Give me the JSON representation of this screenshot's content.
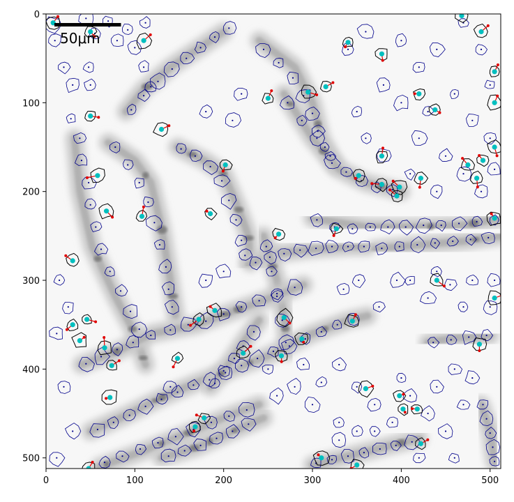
{
  "chart_data": {
    "type": "image",
    "x_ticks": [
      0,
      100,
      200,
      300,
      400,
      500
    ],
    "y_ticks": [
      0,
      100,
      200,
      300,
      400,
      500
    ],
    "xlim": [
      0,
      512
    ],
    "ylim": [
      512,
      0
    ],
    "scale_bar": {
      "label": "50μm",
      "length_px": 75
    },
    "colors": {
      "cell_outline": "#00008b",
      "highlight_outline": "#000000",
      "centroid": "#00bfbf",
      "displacement": "#e00000",
      "nucleus_dot": "#00008b"
    },
    "tissue_strands": [
      [
        [
          32,
          140
        ],
        [
          38,
          200
        ],
        [
          52,
          262
        ],
        [
          78,
          318
        ],
        [
          100,
          360
        ],
        [
          112,
          395
        ]
      ],
      [
        [
          70,
          145
        ],
        [
          100,
          165
        ],
        [
          118,
          190
        ],
        [
          130,
          240
        ],
        [
          140,
          300
        ],
        [
          146,
          340
        ]
      ],
      [
        [
          148,
          150
        ],
        [
          178,
          165
        ],
        [
          200,
          180
        ],
        [
          215,
          215
        ],
        [
          228,
          250
        ],
        [
          230,
          280
        ]
      ],
      [
        [
          240,
          30
        ],
        [
          280,
          60
        ],
        [
          300,
          100
        ],
        [
          310,
          140
        ],
        [
          325,
          170
        ]
      ],
      [
        [
          268,
          90
        ],
        [
          300,
          140
        ],
        [
          330,
          175
        ],
        [
          360,
          190
        ],
        [
          400,
          200
        ]
      ],
      [
        [
          300,
          230
        ],
        [
          360,
          240
        ],
        [
          420,
          240
        ],
        [
          470,
          238
        ],
        [
          512,
          230
        ]
      ],
      [
        [
          228,
          282
        ],
        [
          260,
          270
        ],
        [
          300,
          265
        ],
        [
          340,
          262
        ],
        [
          362,
          262
        ]
      ],
      [
        [
          370,
          265
        ],
        [
          420,
          260
        ],
        [
          470,
          256
        ],
        [
          512,
          250
        ]
      ],
      [
        [
          245,
          250
        ],
        [
          260,
          300
        ],
        [
          268,
          340
        ],
        [
          272,
          380
        ]
      ],
      [
        [
          40,
          395
        ],
        [
          80,
          380
        ],
        [
          120,
          360
        ],
        [
          170,
          350
        ],
        [
          210,
          335
        ],
        [
          252,
          320
        ],
        [
          290,
          305
        ]
      ],
      [
        [
          50,
          470
        ],
        [
          90,
          452
        ],
        [
          130,
          432
        ],
        [
          170,
          415
        ],
        [
          210,
          400
        ],
        [
          250,
          385
        ],
        [
          300,
          360
        ],
        [
          340,
          345
        ],
        [
          362,
          340
        ]
      ],
      [
        [
          60,
          510
        ],
        [
          110,
          492
        ],
        [
          160,
          472
        ],
        [
          200,
          455
        ],
        [
          240,
          440
        ]
      ],
      [
        [
          130,
          500
        ],
        [
          170,
          488
        ],
        [
          210,
          470
        ],
        [
          245,
          455
        ]
      ],
      [
        [
          185,
          420
        ],
        [
          205,
          395
        ],
        [
          222,
          370
        ],
        [
          240,
          345
        ]
      ],
      [
        [
          90,
          110
        ],
        [
          110,
          85
        ],
        [
          140,
          60
        ],
        [
          170,
          40
        ],
        [
          200,
          20
        ]
      ],
      [
        [
          430,
          370
        ],
        [
          460,
          365
        ],
        [
          500,
          362
        ]
      ],
      [
        [
          300,
          508
        ],
        [
          340,
          498
        ],
        [
          380,
          488
        ],
        [
          420,
          478
        ]
      ],
      [
        [
          490,
          440
        ],
        [
          500,
          470
        ],
        [
          505,
          505
        ]
      ]
    ],
    "cells": [
      [
        8,
        12
      ],
      [
        10,
        30
      ],
      [
        20,
        60
      ],
      [
        30,
        80
      ],
      [
        45,
        5
      ],
      [
        55,
        22
      ],
      [
        48,
        60
      ],
      [
        50,
        80
      ],
      [
        70,
        8
      ],
      [
        80,
        30
      ],
      [
        92,
        18
      ],
      [
        100,
        38
      ],
      [
        110,
        60
      ],
      [
        118,
        82
      ],
      [
        112,
        10
      ],
      [
        28,
        118
      ],
      [
        38,
        140
      ],
      [
        40,
        165
      ],
      [
        48,
        190
      ],
      [
        50,
        215
      ],
      [
        56,
        240
      ],
      [
        62,
        265
      ],
      [
        72,
        290
      ],
      [
        84,
        312
      ],
      [
        95,
        335
      ],
      [
        105,
        355
      ],
      [
        78,
        150
      ],
      [
        92,
        170
      ],
      [
        105,
        190
      ],
      [
        115,
        212
      ],
      [
        122,
        235
      ],
      [
        128,
        260
      ],
      [
        135,
        285
      ],
      [
        138,
        310
      ],
      [
        142,
        330
      ],
      [
        152,
        152
      ],
      [
        168,
        160
      ],
      [
        185,
        172
      ],
      [
        198,
        188
      ],
      [
        206,
        210
      ],
      [
        214,
        232
      ],
      [
        220,
        255
      ],
      [
        224,
        272
      ],
      [
        245,
        40
      ],
      [
        262,
        55
      ],
      [
        278,
        72
      ],
      [
        290,
        92
      ],
      [
        300,
        112
      ],
      [
        306,
        132
      ],
      [
        314,
        150
      ],
      [
        322,
        168
      ],
      [
        272,
        100
      ],
      [
        288,
        120
      ],
      [
        305,
        140
      ],
      [
        320,
        160
      ],
      [
        338,
        178
      ],
      [
        355,
        188
      ],
      [
        372,
        195
      ],
      [
        390,
        198
      ],
      [
        305,
        232
      ],
      [
        325,
        240
      ],
      [
        345,
        242
      ],
      [
        365,
        240
      ],
      [
        385,
        240
      ],
      [
        405,
        240
      ],
      [
        425,
        238
      ],
      [
        445,
        238
      ],
      [
        465,
        236
      ],
      [
        485,
        234
      ],
      [
        505,
        232
      ],
      [
        236,
        280
      ],
      [
        252,
        274
      ],
      [
        268,
        270
      ],
      [
        286,
        266
      ],
      [
        304,
        264
      ],
      [
        322,
        262
      ],
      [
        340,
        262
      ],
      [
        358,
        262
      ],
      [
        378,
        264
      ],
      [
        398,
        262
      ],
      [
        418,
        260
      ],
      [
        438,
        258
      ],
      [
        458,
        256
      ],
      [
        478,
        254
      ],
      [
        498,
        252
      ],
      [
        248,
        262
      ],
      [
        254,
        290
      ],
      [
        260,
        318
      ],
      [
        266,
        345
      ],
      [
        270,
        370
      ],
      [
        45,
        394
      ],
      [
        62,
        386
      ],
      [
        80,
        378
      ],
      [
        98,
        370
      ],
      [
        118,
        362
      ],
      [
        140,
        356
      ],
      [
        160,
        350
      ],
      [
        180,
        346
      ],
      [
        200,
        338
      ],
      [
        220,
        330
      ],
      [
        240,
        323
      ],
      [
        260,
        315
      ],
      [
        280,
        308
      ],
      [
        58,
        468
      ],
      [
        76,
        460
      ],
      [
        94,
        452
      ],
      [
        112,
        442
      ],
      [
        130,
        434
      ],
      [
        148,
        426
      ],
      [
        166,
        418
      ],
      [
        184,
        412
      ],
      [
        202,
        404
      ],
      [
        220,
        396
      ],
      [
        238,
        388
      ],
      [
        256,
        380
      ],
      [
        274,
        374
      ],
      [
        292,
        366
      ],
      [
        310,
        358
      ],
      [
        328,
        350
      ],
      [
        346,
        344
      ],
      [
        66,
        505
      ],
      [
        86,
        498
      ],
      [
        106,
        490
      ],
      [
        126,
        483
      ],
      [
        146,
        476
      ],
      [
        166,
        468
      ],
      [
        186,
        460
      ],
      [
        206,
        453
      ],
      [
        226,
        446
      ],
      [
        138,
        498
      ],
      [
        156,
        492
      ],
      [
        174,
        486
      ],
      [
        192,
        478
      ],
      [
        210,
        470
      ],
      [
        228,
        462
      ],
      [
        190,
        416
      ],
      [
        200,
        402
      ],
      [
        212,
        388
      ],
      [
        222,
        374
      ],
      [
        234,
        358
      ],
      [
        96,
        108
      ],
      [
        110,
        92
      ],
      [
        126,
        76
      ],
      [
        142,
        62
      ],
      [
        158,
        50
      ],
      [
        174,
        38
      ],
      [
        190,
        26
      ],
      [
        206,
        16
      ],
      [
        436,
        370
      ],
      [
        456,
        367
      ],
      [
        476,
        364
      ],
      [
        496,
        362
      ],
      [
        304,
        506
      ],
      [
        322,
        502
      ],
      [
        340,
        498
      ],
      [
        358,
        494
      ],
      [
        376,
        490
      ],
      [
        394,
        486
      ],
      [
        412,
        482
      ],
      [
        492,
        440
      ],
      [
        496,
        456
      ],
      [
        500,
        472
      ],
      [
        503,
        488
      ],
      [
        505,
        504
      ],
      [
        15,
        300
      ],
      [
        25,
        330
      ],
      [
        12,
        360
      ],
      [
        20,
        420
      ],
      [
        30,
        470
      ],
      [
        12,
        500
      ],
      [
        140,
        420
      ],
      [
        180,
        300
      ],
      [
        200,
        290
      ],
      [
        210,
        120
      ],
      [
        220,
        90
      ],
      [
        180,
        110
      ],
      [
        340,
        40
      ],
      [
        360,
        20
      ],
      [
        400,
        30
      ],
      [
        420,
        60
      ],
      [
        440,
        40
      ],
      [
        470,
        10
      ],
      [
        490,
        40
      ],
      [
        500,
        80
      ],
      [
        460,
        90
      ],
      [
        430,
        110
      ],
      [
        480,
        120
      ],
      [
        500,
        140
      ],
      [
        420,
        140
      ],
      [
        450,
        160
      ],
      [
        470,
        180
      ],
      [
        490,
        200
      ],
      [
        505,
        175
      ],
      [
        440,
        200
      ],
      [
        410,
        180
      ],
      [
        380,
        160
      ],
      [
        360,
        140
      ],
      [
        350,
        110
      ],
      [
        380,
        80
      ],
      [
        400,
        100
      ],
      [
        410,
        300
      ],
      [
        430,
        320
      ],
      [
        455,
        305
      ],
      [
        480,
        300
      ],
      [
        505,
        300
      ],
      [
        500,
        330
      ],
      [
        470,
        330
      ],
      [
        440,
        290
      ],
      [
        395,
        300
      ],
      [
        375,
        330
      ],
      [
        352,
        300
      ],
      [
        335,
        310
      ],
      [
        330,
        395
      ],
      [
        350,
        420
      ],
      [
        370,
        440
      ],
      [
        390,
        460
      ],
      [
        410,
        430
      ],
      [
        430,
        450
      ],
      [
        450,
        470
      ],
      [
        470,
        440
      ],
      [
        480,
        410
      ],
      [
        460,
        400
      ],
      [
        440,
        420
      ],
      [
        400,
        410
      ],
      [
        330,
        460
      ],
      [
        300,
        440
      ],
      [
        280,
        420
      ],
      [
        260,
        430
      ],
      [
        250,
        400
      ],
      [
        290,
        395
      ],
      [
        310,
        415
      ],
      [
        330,
        480
      ],
      [
        350,
        470
      ],
      [
        370,
        470
      ],
      [
        420,
        500
      ],
      [
        460,
        500
      ]
    ],
    "highlighted_cells": [
      [
        8,
        10
      ],
      [
        50,
        20
      ],
      [
        110,
        30
      ],
      [
        50,
        115
      ],
      [
        58,
        182
      ],
      [
        68,
        222
      ],
      [
        130,
        130
      ],
      [
        108,
        228
      ],
      [
        185,
        225
      ],
      [
        202,
        170
      ],
      [
        250,
        95
      ],
      [
        295,
        88
      ],
      [
        315,
        82
      ],
      [
        340,
        32
      ],
      [
        378,
        45
      ],
      [
        420,
        90
      ],
      [
        438,
        108
      ],
      [
        490,
        20
      ],
      [
        505,
        65
      ],
      [
        505,
        100
      ],
      [
        378,
        160
      ],
      [
        398,
        195
      ],
      [
        422,
        185
      ],
      [
        475,
        170
      ],
      [
        492,
        165
      ],
      [
        505,
        150
      ],
      [
        485,
        185
      ],
      [
        505,
        230
      ],
      [
        262,
        248
      ],
      [
        327,
        242
      ],
      [
        352,
        182
      ],
      [
        378,
        192
      ],
      [
        395,
        205
      ],
      [
        30,
        278
      ],
      [
        30,
        350
      ],
      [
        38,
        368
      ],
      [
        46,
        344
      ],
      [
        66,
        376
      ],
      [
        74,
        396
      ],
      [
        72,
        432
      ],
      [
        148,
        388
      ],
      [
        172,
        344
      ],
      [
        190,
        334
      ],
      [
        222,
        382
      ],
      [
        268,
        342
      ],
      [
        265,
        385
      ],
      [
        288,
        366
      ],
      [
        345,
        346
      ],
      [
        440,
        300
      ],
      [
        505,
        320
      ],
      [
        488,
        372
      ],
      [
        360,
        422
      ],
      [
        398,
        430
      ],
      [
        402,
        445
      ],
      [
        418,
        445
      ],
      [
        422,
        484
      ],
      [
        168,
        465
      ],
      [
        178,
        455
      ],
      [
        310,
        500
      ],
      [
        350,
        508
      ],
      [
        48,
        512
      ],
      [
        468,
        2
      ]
    ]
  }
}
